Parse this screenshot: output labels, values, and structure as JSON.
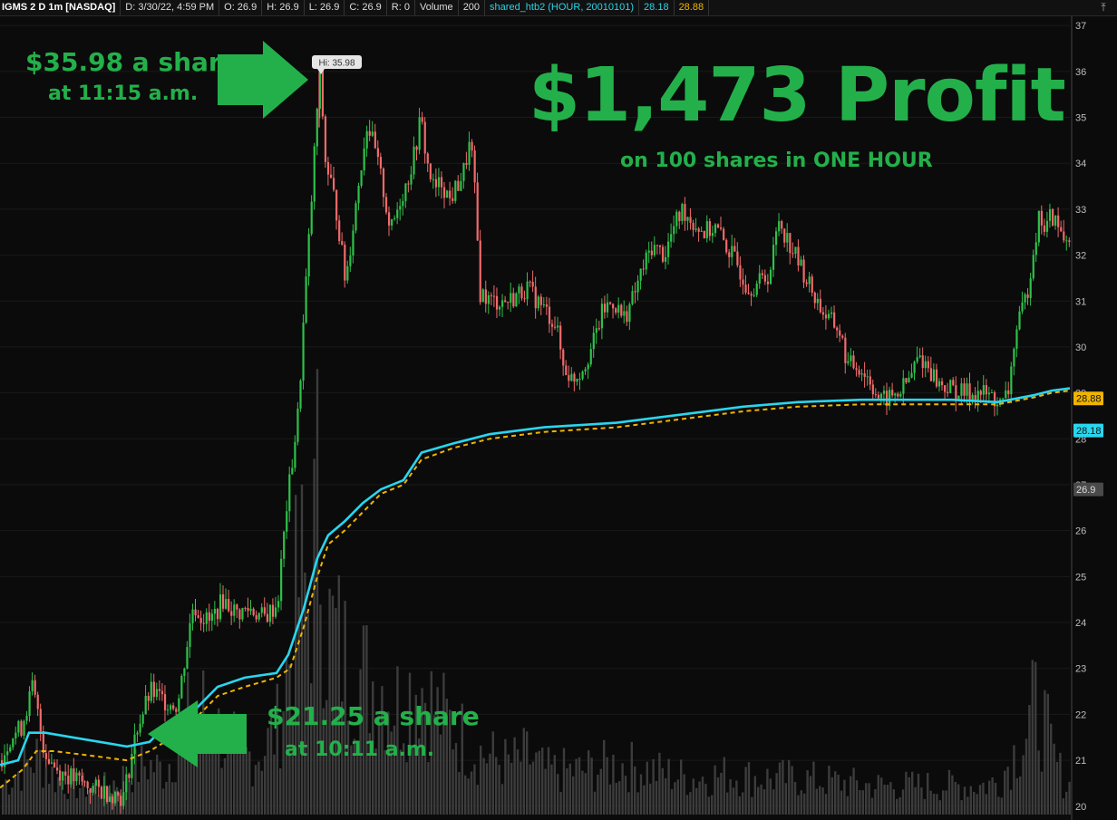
{
  "header": {
    "symbol": "IGMS 2 D 1m [NASDAQ]",
    "date": "D: 3/30/22, 4:59 PM",
    "open": "O: 26.9",
    "high": "H: 26.9",
    "low": "L: 26.9",
    "close": "C: 26.9",
    "range": "R: 0",
    "volume_label": "Volume",
    "volume_value": "200",
    "study": "shared_htb2 (HOUR, 20010101)",
    "study_value1": "28.18",
    "study_value2": "28.88"
  },
  "annotations": {
    "profit_title": "$1,473 Profit",
    "profit_sub": "on 100 shares in ONE HOUR",
    "peak_line1": "$35.98 a share",
    "peak_line2": "at 11:15 a.m.",
    "entry_line1": "$21.25 a share",
    "entry_line2": "at 10:11 a.m.",
    "hi_label": "Hi: 35.98"
  },
  "colors": {
    "up": "#2ec14a",
    "down": "#f06a6a",
    "vwap": "#29d6ee",
    "dashed": "#f0b400",
    "arrow": "#23b04a",
    "volume": "#3c3c3c"
  },
  "icons": {
    "collapse": "collapse-arrow-icon"
  },
  "chart_data": {
    "type": "candlestick",
    "ylim": [
      19.7,
      37.2
    ],
    "y_ticks": [
      20,
      21,
      22,
      23,
      24,
      25,
      26,
      27,
      28,
      29,
      30,
      31,
      32,
      33,
      34,
      35,
      36,
      37
    ],
    "price_marker_value": "26.9",
    "vwap_label": "28.18",
    "dashed_label": "28.88",
    "high": 35.98,
    "price_path": [
      [
        0,
        21.0
      ],
      [
        10,
        21.5
      ],
      [
        22,
        21.7
      ],
      [
        35,
        22.6
      ],
      [
        48,
        21.2
      ],
      [
        62,
        20.8
      ],
      [
        80,
        20.6
      ],
      [
        100,
        20.4
      ],
      [
        120,
        20.3
      ],
      [
        135,
        20.2
      ],
      [
        150,
        21.7
      ],
      [
        165,
        22.5
      ],
      [
        180,
        22.3
      ],
      [
        195,
        22.2
      ],
      [
        205,
        23.5
      ],
      [
        212,
        24.4
      ],
      [
        218,
        24.2
      ],
      [
        230,
        24.0
      ],
      [
        245,
        24.5
      ],
      [
        260,
        24.2
      ],
      [
        275,
        24.3
      ],
      [
        290,
        24.1
      ],
      [
        305,
        24.4
      ],
      [
        315,
        26.5
      ],
      [
        328,
        28.6
      ],
      [
        335,
        31.0
      ],
      [
        342,
        33.0
      ],
      [
        348,
        35.0
      ],
      [
        352,
        35.98
      ],
      [
        358,
        34.0
      ],
      [
        365,
        33.5
      ],
      [
        372,
        32.7
      ],
      [
        380,
        31.4
      ],
      [
        388,
        32.6
      ],
      [
        396,
        33.8
      ],
      [
        404,
        34.9
      ],
      [
        412,
        34.3
      ],
      [
        420,
        33.6
      ],
      [
        430,
        32.5
      ],
      [
        440,
        33.2
      ],
      [
        448,
        33.6
      ],
      [
        456,
        34.2
      ],
      [
        463,
        35.0
      ],
      [
        470,
        34.0
      ],
      [
        478,
        33.4
      ],
      [
        486,
        33.6
      ],
      [
        495,
        33.2
      ],
      [
        503,
        33.5
      ],
      [
        510,
        33.8
      ],
      [
        518,
        34.5
      ],
      [
        524,
        33.0
      ],
      [
        528,
        31.2
      ],
      [
        540,
        31.0
      ],
      [
        560,
        31.0
      ],
      [
        580,
        31.3
      ],
      [
        600,
        30.8
      ],
      [
        612,
        30.5
      ],
      [
        620,
        29.6
      ],
      [
        630,
        29.3
      ],
      [
        640,
        29.5
      ],
      [
        652,
        30.0
      ],
      [
        664,
        30.8
      ],
      [
        676,
        31.0
      ],
      [
        686,
        30.6
      ],
      [
        696,
        31.0
      ],
      [
        706,
        31.6
      ],
      [
        718,
        32.2
      ],
      [
        732,
        32.0
      ],
      [
        742,
        32.6
      ],
      [
        752,
        33.0
      ],
      [
        764,
        32.7
      ],
      [
        776,
        32.5
      ],
      [
        788,
        32.6
      ],
      [
        800,
        32.2
      ],
      [
        812,
        31.8
      ],
      [
        824,
        31.3
      ],
      [
        836,
        31.4
      ],
      [
        848,
        31.6
      ],
      [
        858,
        32.8
      ],
      [
        866,
        32.4
      ],
      [
        876,
        32.0
      ],
      [
        888,
        31.5
      ],
      [
        900,
        31.0
      ],
      [
        912,
        30.6
      ],
      [
        924,
        30.4
      ],
      [
        934,
        29.6
      ],
      [
        945,
        29.6
      ],
      [
        958,
        29.3
      ],
      [
        970,
        28.8
      ],
      [
        980,
        28.9
      ],
      [
        990,
        29.0
      ],
      [
        1002,
        29.3
      ],
      [
        1012,
        29.8
      ],
      [
        1022,
        29.6
      ],
      [
        1034,
        29.2
      ],
      [
        1046,
        29.1
      ],
      [
        1058,
        29.0
      ],
      [
        1070,
        29.0
      ],
      [
        1082,
        29.0
      ],
      [
        1094,
        28.9
      ],
      [
        1104,
        28.7
      ],
      [
        1112,
        29.1
      ],
      [
        1118,
        30.2
      ],
      [
        1124,
        30.6
      ],
      [
        1132,
        31.2
      ],
      [
        1140,
        32.3
      ],
      [
        1146,
        32.9
      ],
      [
        1152,
        32.5
      ],
      [
        1158,
        32.9
      ],
      [
        1166,
        32.6
      ],
      [
        1174,
        32.3
      ],
      [
        1178,
        32.5
      ]
    ],
    "vwap_path": [
      [
        0,
        20.9
      ],
      [
        20,
        21.0
      ],
      [
        32,
        21.6
      ],
      [
        50,
        21.6
      ],
      [
        80,
        21.5
      ],
      [
        110,
        21.4
      ],
      [
        140,
        21.3
      ],
      [
        165,
        21.4
      ],
      [
        190,
        21.9
      ],
      [
        215,
        22.1
      ],
      [
        240,
        22.6
      ],
      [
        270,
        22.8
      ],
      [
        305,
        22.9
      ],
      [
        318,
        23.3
      ],
      [
        335,
        24.3
      ],
      [
        350,
        25.4
      ],
      [
        362,
        25.9
      ],
      [
        380,
        26.2
      ],
      [
        400,
        26.6
      ],
      [
        420,
        26.9
      ],
      [
        445,
        27.1
      ],
      [
        465,
        27.7
      ],
      [
        500,
        27.9
      ],
      [
        540,
        28.1
      ],
      [
        600,
        28.25
      ],
      [
        680,
        28.35
      ],
      [
        760,
        28.55
      ],
      [
        820,
        28.7
      ],
      [
        880,
        28.8
      ],
      [
        950,
        28.85
      ],
      [
        1050,
        28.85
      ],
      [
        1100,
        28.8
      ],
      [
        1140,
        28.95
      ],
      [
        1160,
        29.05
      ],
      [
        1180,
        29.1
      ]
    ],
    "dashed_path": [
      [
        0,
        20.4
      ],
      [
        25,
        20.8
      ],
      [
        40,
        21.2
      ],
      [
        60,
        21.2
      ],
      [
        100,
        21.1
      ],
      [
        140,
        21.0
      ],
      [
        165,
        21.2
      ],
      [
        190,
        21.5
      ],
      [
        215,
        21.9
      ],
      [
        240,
        22.4
      ],
      [
        270,
        22.6
      ],
      [
        305,
        22.8
      ],
      [
        320,
        23.0
      ],
      [
        335,
        23.9
      ],
      [
        350,
        25.0
      ],
      [
        362,
        25.7
      ],
      [
        380,
        26.0
      ],
      [
        400,
        26.4
      ],
      [
        420,
        26.8
      ],
      [
        445,
        27.0
      ],
      [
        465,
        27.55
      ],
      [
        500,
        27.8
      ],
      [
        540,
        28.0
      ],
      [
        600,
        28.15
      ],
      [
        680,
        28.25
      ],
      [
        760,
        28.45
      ],
      [
        820,
        28.6
      ],
      [
        880,
        28.7
      ],
      [
        950,
        28.75
      ],
      [
        1050,
        28.75
      ],
      [
        1100,
        28.75
      ],
      [
        1140,
        28.9
      ],
      [
        1160,
        29.0
      ],
      [
        1180,
        29.05
      ]
    ],
    "volume_path": [
      [
        0,
        40
      ],
      [
        20,
        60
      ],
      [
        40,
        80
      ],
      [
        60,
        50
      ],
      [
        80,
        40
      ],
      [
        110,
        35
      ],
      [
        140,
        55
      ],
      [
        160,
        70
      ],
      [
        180,
        60
      ],
      [
        200,
        110
      ],
      [
        215,
        160
      ],
      [
        230,
        130
      ],
      [
        250,
        100
      ],
      [
        270,
        80
      ],
      [
        290,
        90
      ],
      [
        305,
        120
      ],
      [
        318,
        220
      ],
      [
        330,
        330
      ],
      [
        340,
        280
      ],
      [
        350,
        445
      ],
      [
        358,
        260
      ],
      [
        370,
        240
      ],
      [
        385,
        200
      ],
      [
        400,
        190
      ],
      [
        420,
        180
      ],
      [
        440,
        150
      ],
      [
        460,
        190
      ],
      [
        480,
        140
      ],
      [
        500,
        120
      ],
      [
        520,
        90
      ],
      [
        540,
        80
      ],
      [
        560,
        70
      ],
      [
        580,
        80
      ],
      [
        600,
        60
      ],
      [
        640,
        60
      ],
      [
        680,
        70
      ],
      [
        720,
        60
      ],
      [
        760,
        50
      ],
      [
        800,
        55
      ],
      [
        840,
        50
      ],
      [
        880,
        50
      ],
      [
        920,
        45
      ],
      [
        960,
        40
      ],
      [
        1000,
        40
      ],
      [
        1040,
        40
      ],
      [
        1080,
        40
      ],
      [
        1100,
        45
      ],
      [
        1115,
        80
      ],
      [
        1130,
        110
      ],
      [
        1140,
        150
      ],
      [
        1150,
        130
      ],
      [
        1160,
        80
      ],
      [
        1175,
        40
      ]
    ]
  }
}
